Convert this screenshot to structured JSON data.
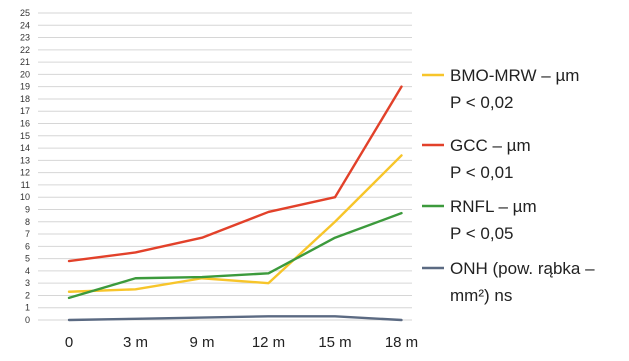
{
  "chart_data": {
    "type": "line",
    "categories": [
      "0",
      "3 m",
      "9 m",
      "12 m",
      "15 m",
      "18 m"
    ],
    "y_ticks": [
      "0",
      "1",
      "2",
      "3",
      "4",
      "5",
      "6",
      "7",
      "8",
      "9",
      "10",
      "11",
      "12",
      "13",
      "14",
      "15",
      "16",
      "17",
      "18",
      "19",
      "20",
      "21",
      "22",
      "23",
      "24",
      "25"
    ],
    "ylim": [
      0,
      25
    ],
    "grid": true,
    "legend_position": "right",
    "series": [
      {
        "name_line1": "BMO-MRW – µm",
        "name_line2": "P < 0,02",
        "color": "#f7c52a",
        "values": [
          2.3,
          2.5,
          3.4,
          3.0,
          8.0,
          13.4
        ]
      },
      {
        "name_line1": "GCC – µm",
        "name_line2": "P < 0,01",
        "color": "#e2412a",
        "values": [
          4.8,
          5.5,
          6.7,
          8.8,
          10.0,
          19.0
        ]
      },
      {
        "name_line1": "RNFL – µm",
        "name_line2": "P < 0,05",
        "color": "#3c9a3c",
        "values": [
          1.8,
          3.4,
          3.5,
          3.8,
          6.7,
          8.7
        ]
      },
      {
        "name_line1": "ONH (pow. rąbka –",
        "name_line2": "mm²) ns",
        "color": "#5b6a82",
        "values": [
          0.0,
          0.1,
          0.2,
          0.3,
          0.3,
          0.0
        ]
      }
    ]
  }
}
